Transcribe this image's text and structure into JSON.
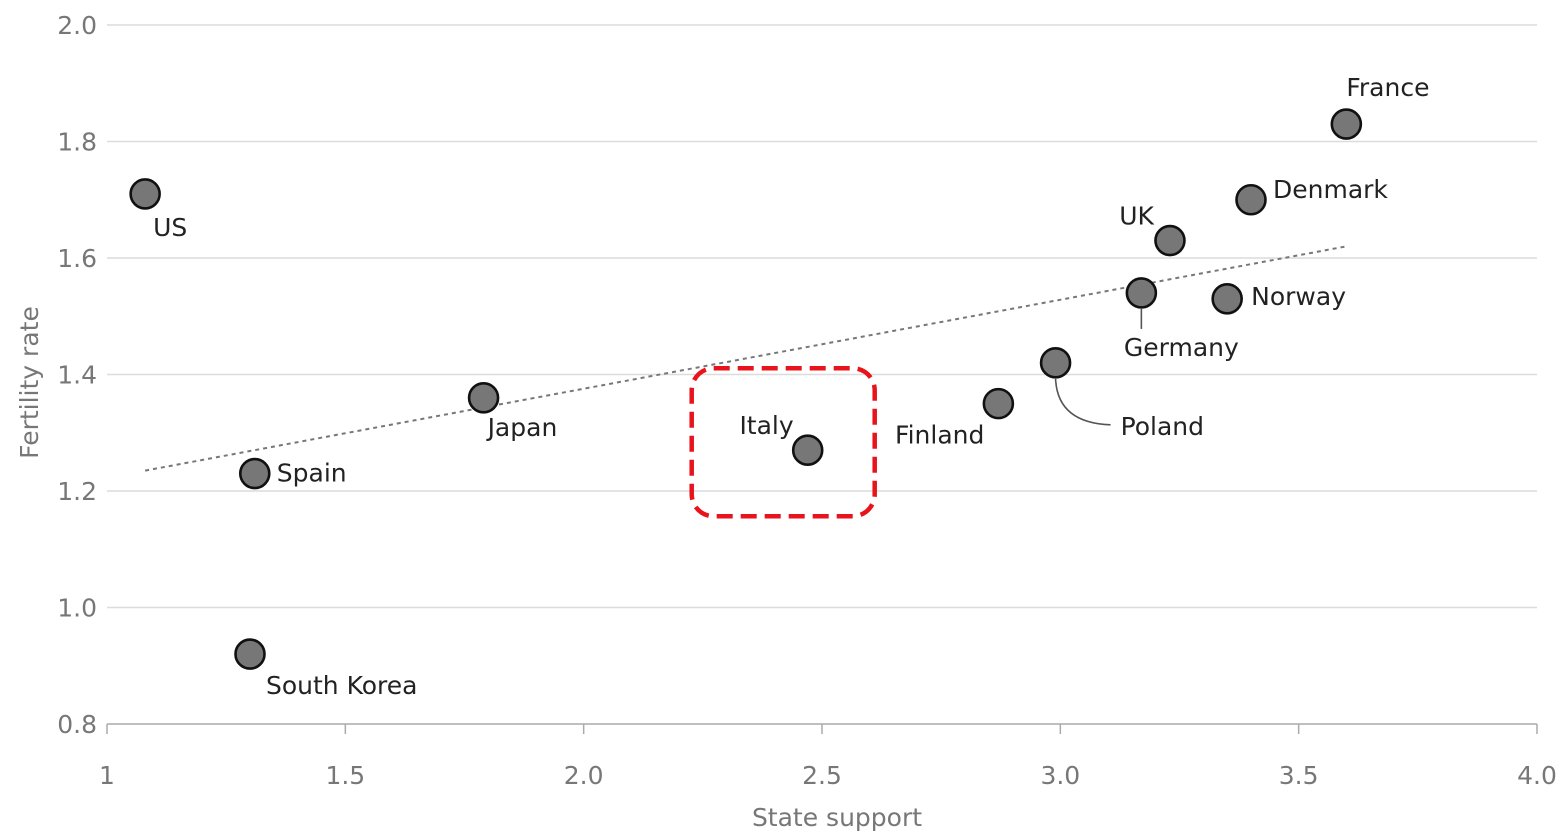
{
  "chart_data": {
    "type": "scatter",
    "xlabel": "State support",
    "ylabel": "Fertility rate",
    "xlim": [
      1,
      4.0
    ],
    "ylim": [
      0.8,
      2.0
    ],
    "x_ticks": [
      {
        "value": 1,
        "label": "1"
      },
      {
        "value": 1.5,
        "label": "1.5"
      },
      {
        "value": 2.0,
        "label": "2.0"
      },
      {
        "value": 2.5,
        "label": "2.5"
      },
      {
        "value": 3.0,
        "label": "3.0"
      },
      {
        "value": 3.5,
        "label": "3.5"
      },
      {
        "value": 4.0,
        "label": "4.0"
      }
    ],
    "y_ticks": [
      {
        "value": 0.8,
        "label": "0.8"
      },
      {
        "value": 1.0,
        "label": "1.0"
      },
      {
        "value": 1.2,
        "label": "1.2"
      },
      {
        "value": 1.4,
        "label": "1.4"
      },
      {
        "value": 1.6,
        "label": "1.6"
      },
      {
        "value": 1.8,
        "label": "1.8"
      },
      {
        "value": 2.0,
        "label": "2.0"
      }
    ],
    "grid": "horizontal",
    "points": [
      {
        "label": "US",
        "x": 1.08,
        "y": 1.71
      },
      {
        "label": "Spain",
        "x": 1.31,
        "y": 1.23
      },
      {
        "label": "South Korea",
        "x": 1.3,
        "y": 0.92
      },
      {
        "label": "Japan",
        "x": 1.79,
        "y": 1.36
      },
      {
        "label": "Italy",
        "x": 2.47,
        "y": 1.27
      },
      {
        "label": "Finland",
        "x": 2.87,
        "y": 1.35
      },
      {
        "label": "Poland",
        "x": 2.99,
        "y": 1.42
      },
      {
        "label": "Germany",
        "x": 3.17,
        "y": 1.54
      },
      {
        "label": "UK",
        "x": 3.23,
        "y": 1.63
      },
      {
        "label": "Norway",
        "x": 3.35,
        "y": 1.53
      },
      {
        "label": "Denmark",
        "x": 3.4,
        "y": 1.7
      },
      {
        "label": "France",
        "x": 3.6,
        "y": 1.83
      }
    ],
    "trendline": {
      "x": [
        1.08,
        3.6
      ],
      "y": [
        1.235,
        1.62
      ],
      "style": "dotted"
    },
    "highlight": {
      "label": "Italy",
      "style": "red dashed rounded box"
    },
    "colors": {
      "marker_fill": "#777777",
      "marker_stroke": "#111111",
      "highlight": "#e8131b",
      "trendline": "#777777",
      "grid": "#dcdcdc",
      "tick_text": "#777777",
      "label_text": "#222222"
    }
  }
}
